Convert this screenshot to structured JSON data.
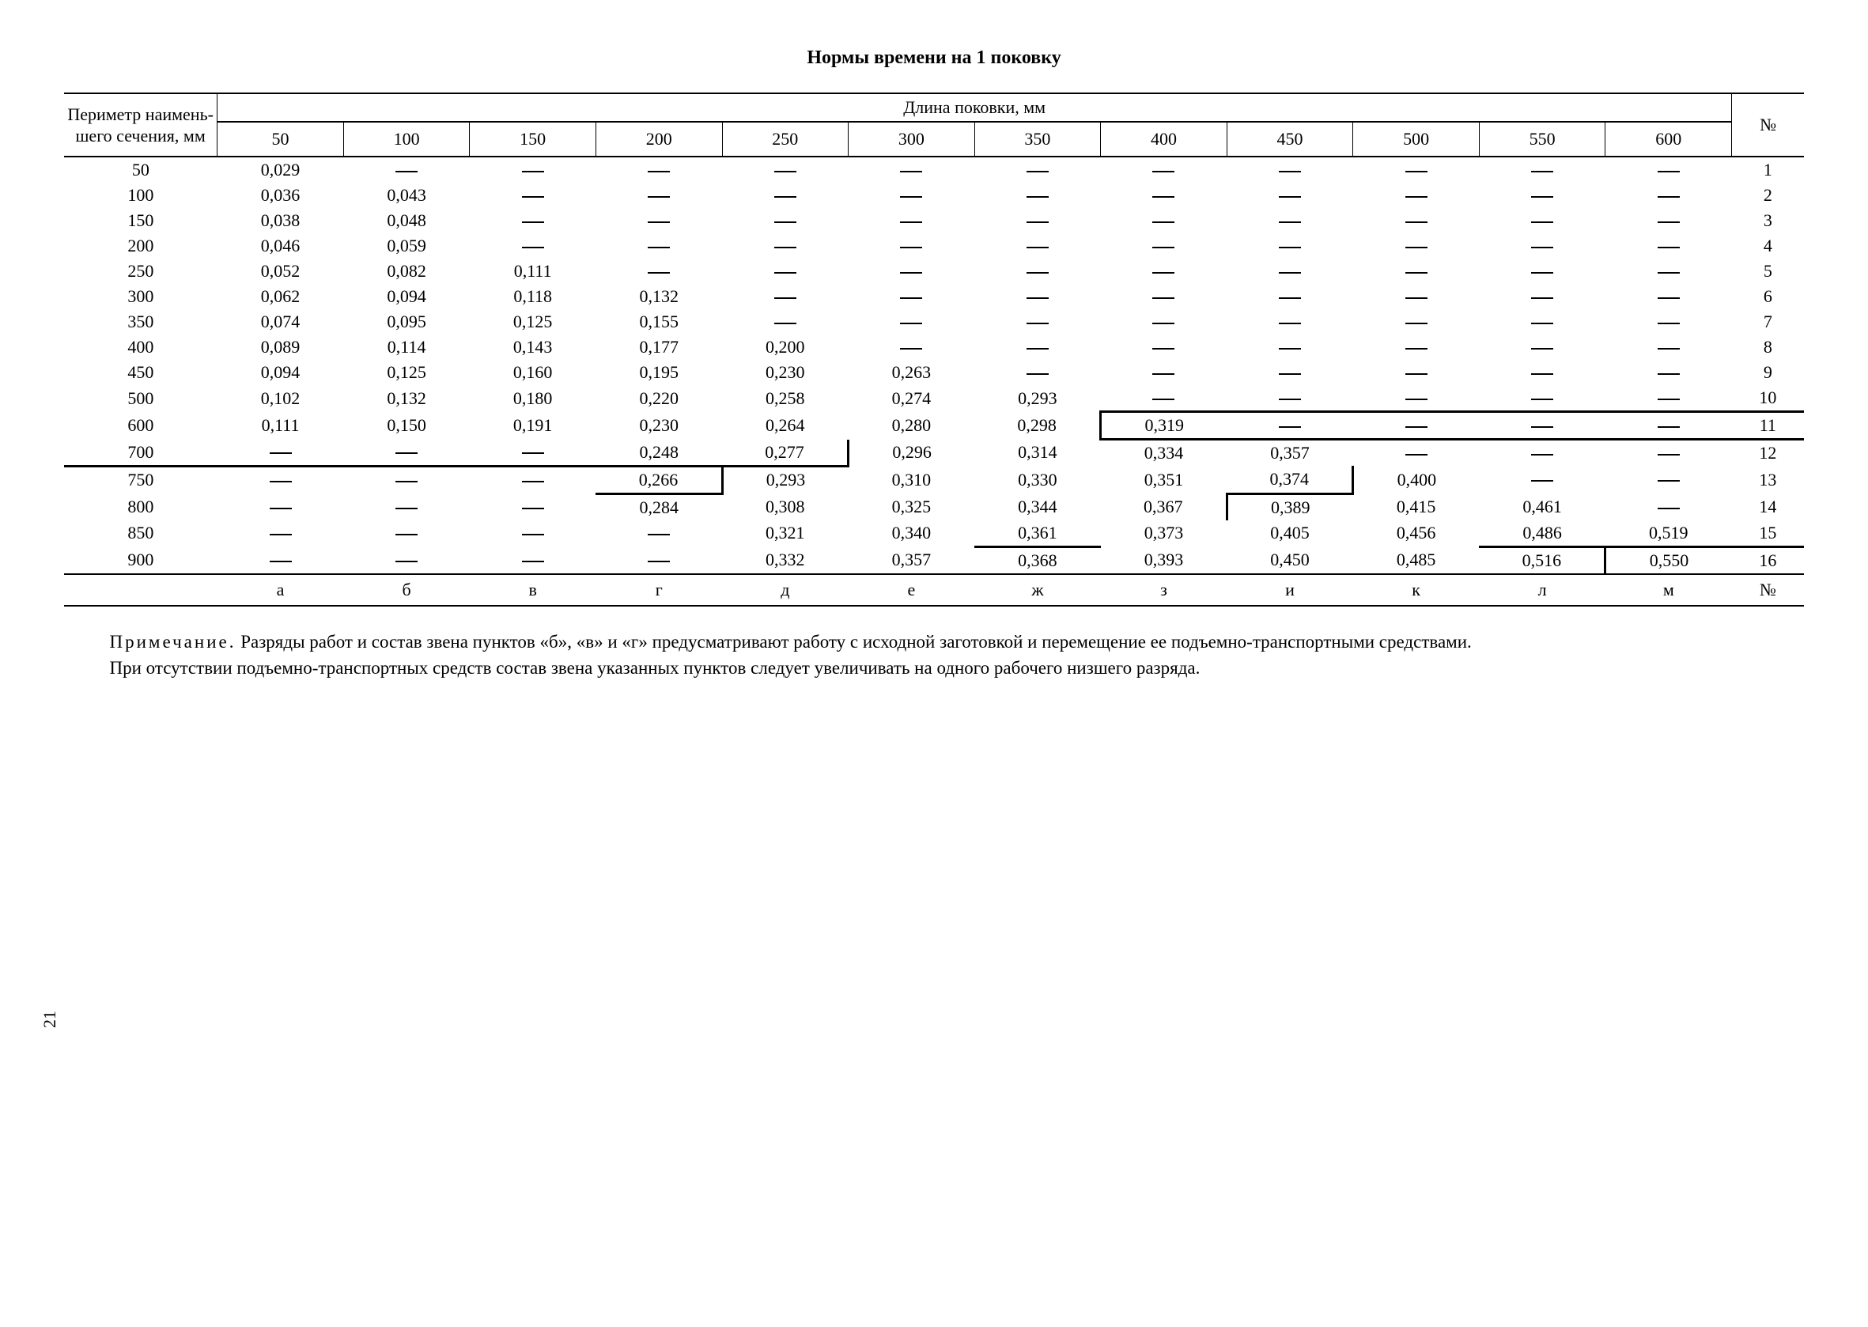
{
  "title": "Нормы времени на 1 поковку",
  "table": {
    "row_header_label": "Периметр наимень­шего се­чения, мм",
    "spanner_label": "Длина поковки, мм",
    "index_label": "№",
    "col_headers": [
      "50",
      "100",
      "150",
      "200",
      "250",
      "300",
      "350",
      "400",
      "450",
      "500",
      "550",
      "600"
    ],
    "row_labels": [
      "50",
      "100",
      "150",
      "200",
      "250",
      "300",
      "350",
      "400",
      "450",
      "500",
      "600",
      "700",
      "750",
      "800",
      "850",
      "900"
    ],
    "index_values": [
      "1",
      "2",
      "3",
      "4",
      "5",
      "6",
      "7",
      "8",
      "9",
      "10",
      "11",
      "12",
      "13",
      "14",
      "15",
      "16"
    ],
    "values": [
      [
        "0,029",
        null,
        null,
        null,
        null,
        null,
        null,
        null,
        null,
        null,
        null,
        null
      ],
      [
        "0,036",
        "0,043",
        null,
        null,
        null,
        null,
        null,
        null,
        null,
        null,
        null,
        null
      ],
      [
        "0,038",
        "0,048",
        null,
        null,
        null,
        null,
        null,
        null,
        null,
        null,
        null,
        null
      ],
      [
        "0,046",
        "0,059",
        null,
        null,
        null,
        null,
        null,
        null,
        null,
        null,
        null,
        null
      ],
      [
        "0,052",
        "0,082",
        "0,111",
        null,
        null,
        null,
        null,
        null,
        null,
        null,
        null,
        null
      ],
      [
        "0,062",
        "0,094",
        "0,118",
        "0,132",
        null,
        null,
        null,
        null,
        null,
        null,
        null,
        null
      ],
      [
        "0,074",
        "0,095",
        "0,125",
        "0,155",
        null,
        null,
        null,
        null,
        null,
        null,
        null,
        null
      ],
      [
        "0,089",
        "0,114",
        "0,143",
        "0,177",
        "0,200",
        null,
        null,
        null,
        null,
        null,
        null,
        null
      ],
      [
        "0,094",
        "0,125",
        "0,160",
        "0,195",
        "0,230",
        "0,263",
        null,
        null,
        null,
        null,
        null,
        null
      ],
      [
        "0,102",
        "0,132",
        "0,180",
        "0,220",
        "0,258",
        "0,274",
        "0,293",
        null,
        null,
        null,
        null,
        null
      ],
      [
        "0,111",
        "0,150",
        "0,191",
        "0,230",
        "0,264",
        "0,280",
        "0,298",
        "0,319",
        null,
        null,
        null,
        null
      ],
      [
        null,
        null,
        null,
        "0,248",
        "0,277",
        "0,296",
        "0,314",
        "0,334",
        "0,357",
        null,
        null,
        null
      ],
      [
        null,
        null,
        null,
        "0,266",
        "0,293",
        "0,310",
        "0,330",
        "0,351",
        "0,374",
        "0,400",
        null,
        null
      ],
      [
        null,
        null,
        null,
        "0,284",
        "0,308",
        "0,325",
        "0,344",
        "0,367",
        "0,389",
        "0,415",
        "0,461",
        null
      ],
      [
        null,
        null,
        null,
        null,
        "0,321",
        "0,340",
        "0,361",
        "0,373",
        "0,405",
        "0,456",
        "0,486",
        "0,519"
      ],
      [
        null,
        null,
        null,
        null,
        "0,332",
        "0,357",
        "0,368",
        "0,393",
        "0,450",
        "0,485",
        "0,516",
        "0,550"
      ]
    ],
    "footer_letters": [
      "а",
      "б",
      "в",
      "г",
      "д",
      "е",
      "ж",
      "з",
      "и",
      "к",
      "л",
      "м"
    ],
    "heavy_cells": {
      "10_7": "hb-bottom",
      "10_8": "hb-bottom",
      "10_9": "hb-bottom",
      "10_10": "hb-bottom",
      "10_11": "hb-bottom",
      "10_idx": "hb-bottom",
      "11_7": "hb-left hb-bottom",
      "11_8": "hb-bottom",
      "11_9": "hb-bottom",
      "11_10": "hb-bottom",
      "11_11": "hb-bottom",
      "11_idx": "hb-bottom",
      "12_4": "hb-bottom",
      "12_5": "hb-left",
      "13_lbl": "hb-top",
      "13_0": "hb-top",
      "13_1": "hb-top",
      "13_2": "hb-top",
      "13_3": "hb-top hb-bottom",
      "13_4": "hb-left",
      "13_8": "hb-bottom",
      "13_9": "hb-left",
      "14_7": "hb-right",
      "15_6": "hb-bottom",
      "15_10": "hb-bottom",
      "15_11": "hb-bottom",
      "15_idx": "hb-bottom",
      "16_11": "hb-left"
    }
  },
  "note": {
    "label": "Примечание.",
    "p1": "Разряды работ и состав звена пунктов «б», «в» и «г»   предусматривают работу с исходной заготовкой и перемещение ее подъемно-транспортными средствами.",
    "p2": "При отсутствии подъемно-транспортных средств состав звена указанных пунктов следует увеличи­вать на одного рабочего низшего разряда."
  },
  "page_number": "21",
  "style": {
    "font_family": "Times New Roman",
    "rule_color": "#000000",
    "background": "#ffffff"
  }
}
